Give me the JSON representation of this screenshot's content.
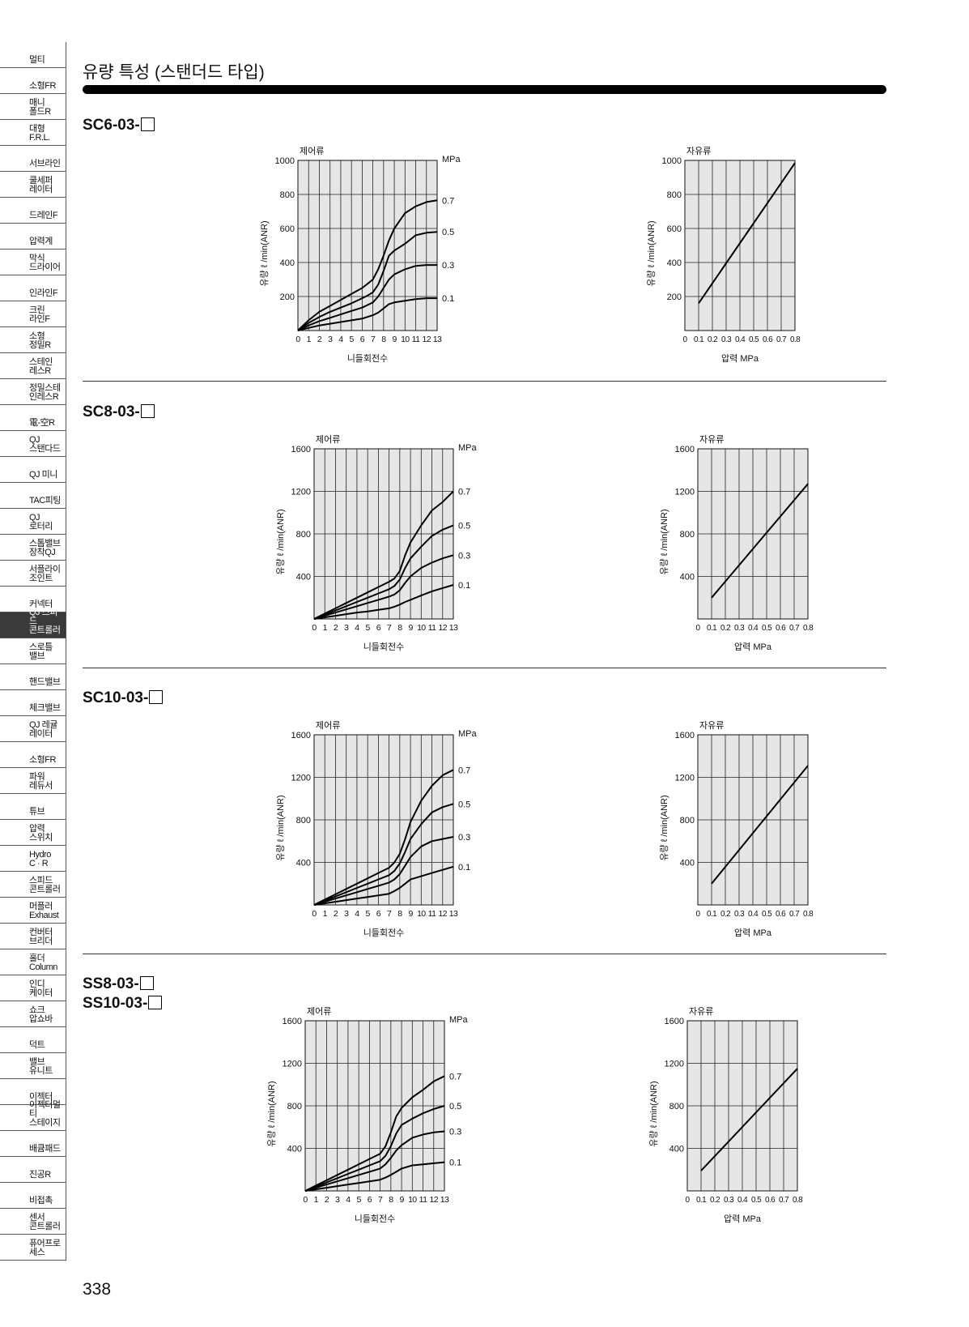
{
  "sidebar": {
    "items": [
      {
        "label": "멀티",
        "active": false
      },
      {
        "label": "소형FR",
        "active": false
      },
      {
        "label": "매니\n폴드R",
        "active": false
      },
      {
        "label": "대형\nF.R.L.",
        "active": false
      },
      {
        "label": "서브라인",
        "active": false
      },
      {
        "label": "쿨세퍼\n레이터",
        "active": false
      },
      {
        "label": "드레인F",
        "active": false
      },
      {
        "label": "압력계",
        "active": false
      },
      {
        "label": "막식\n드라이어",
        "active": false
      },
      {
        "label": "인라인F",
        "active": false
      },
      {
        "label": "크린\n라인F",
        "active": false
      },
      {
        "label": "소형\n정밀R",
        "active": false
      },
      {
        "label": "스테인\n레스R",
        "active": false
      },
      {
        "label": "정밀스테\n인레스R",
        "active": false
      },
      {
        "label": "電-空R",
        "active": false
      },
      {
        "label": "QJ\n스탠다드",
        "active": false
      },
      {
        "label": "QJ 미니",
        "active": false
      },
      {
        "label": "TAC피팅",
        "active": false
      },
      {
        "label": "QJ\n로터리",
        "active": false
      },
      {
        "label": "스톱밸브\n장착QJ",
        "active": false
      },
      {
        "label": "서플라이\n조인트",
        "active": false
      },
      {
        "label": "커넥터",
        "active": false
      },
      {
        "label": "QJ 스피드\n콘트롤러",
        "active": true
      },
      {
        "label": "스로틀\n밸브",
        "active": false
      },
      {
        "label": "핸드밸브",
        "active": false
      },
      {
        "label": "체크밸브",
        "active": false
      },
      {
        "label": "QJ 레귤\n레이터",
        "active": false
      },
      {
        "label": "소형FR",
        "active": false
      },
      {
        "label": "파워\n레듀서",
        "active": false
      },
      {
        "label": "튜브",
        "active": false
      },
      {
        "label": "압력\n스위치",
        "active": false
      },
      {
        "label": "Hydro\nC · R",
        "active": false
      },
      {
        "label": "스피드\n콘트롤러",
        "active": false
      },
      {
        "label": "머플러\nExhaust",
        "active": false
      },
      {
        "label": "컨버터\n브리더",
        "active": false
      },
      {
        "label": "홀더\nColumn",
        "active": false
      },
      {
        "label": "인디\n케이터",
        "active": false
      },
      {
        "label": "쇼크\n압쇼바",
        "active": false
      },
      {
        "label": "덕트",
        "active": false
      },
      {
        "label": "밸브\n유니트",
        "active": false
      },
      {
        "label": "이젝터",
        "active": false
      },
      {
        "label": "이젝터멀티\n스테이지",
        "active": false
      },
      {
        "label": "배큠패드",
        "active": false
      },
      {
        "label": "진공R",
        "active": false
      },
      {
        "label": "비접촉",
        "active": false
      },
      {
        "label": "센서\n콘트롤러",
        "active": false
      },
      {
        "label": "퓨어프로\n세스",
        "active": false
      }
    ]
  },
  "page": {
    "title": "유량 특성 (스탠더드 타입)",
    "page_number": "338"
  },
  "sections": [
    {
      "label_lines": [
        "SC6-03-"
      ]
    },
    {
      "label_lines": [
        "SC8-03-"
      ]
    },
    {
      "label_lines": [
        "SC10-03-"
      ]
    },
    {
      "label_lines": [
        "SS8-03-",
        "SS10-03-"
      ]
    }
  ],
  "chart_data": [
    {
      "id": "sc6-controlled",
      "type": "line",
      "title": "제어류",
      "xlabel": "니들회전수",
      "ylabel": "유량  ℓ /min(ANR)",
      "secondary_axis_label": "MPa",
      "x_ticks": [
        "0",
        "1",
        "2",
        "3",
        "4",
        "5",
        "6",
        "7",
        "8",
        "9",
        "10",
        "11",
        "12",
        "13"
      ],
      "y_ticks": [
        "200",
        "400",
        "600",
        "800",
        "1000"
      ],
      "ylim": [
        0,
        1000
      ],
      "xlim": [
        0,
        13
      ],
      "grid": true,
      "series": [
        {
          "name": "0.7",
          "x": [
            0,
            1,
            2,
            3,
            4,
            5,
            6,
            6.5,
            7,
            7.5,
            8,
            8.5,
            9,
            10,
            11,
            12,
            13
          ],
          "y": [
            0,
            60,
            110,
            145,
            180,
            215,
            250,
            275,
            300,
            360,
            440,
            530,
            600,
            690,
            730,
            755,
            765
          ]
        },
        {
          "name": "0.5",
          "x": [
            0,
            1,
            2,
            3,
            4,
            5,
            6,
            6.5,
            7,
            7.5,
            8,
            8.5,
            9,
            10,
            11,
            12,
            13
          ],
          "y": [
            0,
            45,
            80,
            110,
            135,
            160,
            190,
            205,
            225,
            270,
            350,
            440,
            470,
            510,
            560,
            575,
            580
          ]
        },
        {
          "name": "0.3",
          "x": [
            0,
            1,
            2,
            3,
            4,
            5,
            6,
            6.5,
            7,
            7.5,
            8,
            8.5,
            9,
            10,
            11,
            12,
            13
          ],
          "y": [
            0,
            30,
            55,
            75,
            95,
            115,
            135,
            150,
            165,
            200,
            250,
            300,
            330,
            360,
            380,
            385,
            385
          ]
        },
        {
          "name": "0.1",
          "x": [
            0,
            1,
            2,
            3,
            4,
            5,
            6,
            6.5,
            7,
            7.5,
            8,
            8.5,
            9,
            10,
            11,
            12,
            13
          ],
          "y": [
            0,
            15,
            30,
            40,
            50,
            60,
            70,
            80,
            90,
            105,
            130,
            155,
            165,
            175,
            185,
            190,
            190
          ]
        }
      ]
    },
    {
      "id": "sc6-free",
      "type": "line",
      "title": "자유류",
      "xlabel": "압력 MPa",
      "ylabel": "유량  ℓ /min(ANR)",
      "x_ticks": [
        "0",
        "0.1",
        "0.2",
        "0.3",
        "0.4",
        "0.5",
        "0.6",
        "0.7",
        "0.8"
      ],
      "y_ticks": [
        "200",
        "400",
        "600",
        "800",
        "1000"
      ],
      "ylim": [
        0,
        1000
      ],
      "xlim": [
        0,
        0.8
      ],
      "grid": true,
      "series": [
        {
          "x": [
            0.1,
            0.8
          ],
          "y": [
            160,
            985
          ]
        }
      ]
    },
    {
      "id": "sc8-controlled",
      "type": "line",
      "title": "제어류",
      "xlabel": "니들회전수",
      "ylabel": "유량  ℓ /min(ANR)",
      "secondary_axis_label": "MPa",
      "x_ticks": [
        "0",
        "1",
        "2",
        "3",
        "4",
        "5",
        "6",
        "7",
        "8",
        "9",
        "10",
        "11",
        "12",
        "13"
      ],
      "y_ticks": [
        "400",
        "800",
        "1200",
        "1600"
      ],
      "ylim": [
        0,
        1600
      ],
      "xlim": [
        0,
        13
      ],
      "grid": true,
      "series": [
        {
          "name": "0.7",
          "x": [
            0,
            1,
            2,
            3,
            4,
            5,
            6,
            7,
            7.5,
            8,
            8.5,
            9,
            10,
            11,
            12,
            13
          ],
          "y": [
            0,
            50,
            100,
            150,
            200,
            250,
            300,
            350,
            380,
            450,
            600,
            720,
            880,
            1020,
            1100,
            1200
          ]
        },
        {
          "name": "0.5",
          "x": [
            0,
            1,
            2,
            3,
            4,
            5,
            6,
            7,
            7.5,
            8,
            8.5,
            9,
            10,
            11,
            12,
            13
          ],
          "y": [
            0,
            40,
            80,
            120,
            160,
            200,
            240,
            280,
            310,
            370,
            480,
            570,
            680,
            780,
            840,
            880
          ]
        },
        {
          "name": "0.3",
          "x": [
            0,
            1,
            2,
            3,
            4,
            5,
            6,
            7,
            7.5,
            8,
            8.5,
            9,
            10,
            11,
            12,
            13
          ],
          "y": [
            0,
            30,
            60,
            90,
            120,
            150,
            180,
            210,
            230,
            270,
            340,
            400,
            480,
            530,
            570,
            600
          ]
        },
        {
          "name": "0.1",
          "x": [
            0,
            1,
            2,
            3,
            4,
            5,
            6,
            7,
            7.5,
            8,
            8.5,
            9,
            10,
            11,
            12,
            13
          ],
          "y": [
            0,
            15,
            30,
            45,
            60,
            70,
            85,
            100,
            115,
            135,
            160,
            180,
            220,
            260,
            290,
            320
          ]
        }
      ]
    },
    {
      "id": "sc8-free",
      "type": "line",
      "title": "자유류",
      "xlabel": "압력 MPa",
      "ylabel": "유량  ℓ /min(ANR)",
      "x_ticks": [
        "0",
        "0.1",
        "0.2",
        "0.3",
        "0.4",
        "0.5",
        "0.6",
        "0.7",
        "0.8"
      ],
      "y_ticks": [
        "400",
        "800",
        "1200",
        "1600"
      ],
      "ylim": [
        0,
        1600
      ],
      "xlim": [
        0,
        0.8
      ],
      "grid": true,
      "series": [
        {
          "x": [
            0.1,
            0.8
          ],
          "y": [
            200,
            1270
          ]
        }
      ]
    },
    {
      "id": "sc10-controlled",
      "type": "line",
      "title": "제어류",
      "xlabel": "니들회전수",
      "ylabel": "유량  ℓ /min(ANR)",
      "secondary_axis_label": "MPa",
      "x_ticks": [
        "0",
        "1",
        "2",
        "3",
        "4",
        "5",
        "6",
        "7",
        "8",
        "9",
        "10",
        "11",
        "12",
        "13"
      ],
      "y_ticks": [
        "400",
        "800",
        "1200",
        "1600"
      ],
      "ylim": [
        0,
        1600
      ],
      "xlim": [
        0,
        13
      ],
      "grid": true,
      "series": [
        {
          "name": "0.7",
          "x": [
            0,
            1,
            2,
            3,
            4,
            5,
            6,
            7,
            7.5,
            8,
            8.5,
            9,
            10,
            11,
            12,
            13
          ],
          "y": [
            0,
            50,
            100,
            150,
            200,
            250,
            300,
            350,
            400,
            480,
            620,
            780,
            980,
            1120,
            1220,
            1270
          ]
        },
        {
          "name": "0.5",
          "x": [
            0,
            1,
            2,
            3,
            4,
            5,
            6,
            7,
            7.5,
            8,
            8.5,
            9,
            10,
            11,
            12,
            13
          ],
          "y": [
            0,
            40,
            80,
            120,
            160,
            200,
            240,
            280,
            320,
            390,
            500,
            620,
            760,
            870,
            920,
            950
          ]
        },
        {
          "name": "0.3",
          "x": [
            0,
            1,
            2,
            3,
            4,
            5,
            6,
            7,
            7.5,
            8,
            8.5,
            9,
            10,
            11,
            12,
            13
          ],
          "y": [
            0,
            30,
            60,
            90,
            120,
            150,
            180,
            210,
            240,
            290,
            370,
            450,
            550,
            600,
            620,
            640
          ]
        },
        {
          "name": "0.1",
          "x": [
            0,
            1,
            2,
            3,
            4,
            5,
            6,
            7,
            7.5,
            8,
            8.5,
            9,
            10,
            11,
            12,
            13
          ],
          "y": [
            0,
            15,
            30,
            45,
            60,
            75,
            90,
            105,
            130,
            160,
            200,
            240,
            270,
            300,
            330,
            360
          ]
        }
      ]
    },
    {
      "id": "sc10-free",
      "type": "line",
      "title": "자유류",
      "xlabel": "압력 MPa",
      "ylabel": "유량  ℓ /min(ANR)",
      "x_ticks": [
        "0",
        "0.1",
        "0.2",
        "0.3",
        "0.4",
        "0.5",
        "0.6",
        "0.7",
        "0.8"
      ],
      "y_ticks": [
        "400",
        "800",
        "1200",
        "1600"
      ],
      "ylim": [
        0,
        1600
      ],
      "xlim": [
        0,
        0.8
      ],
      "grid": true,
      "series": [
        {
          "x": [
            0.1,
            0.8
          ],
          "y": [
            200,
            1310
          ]
        }
      ]
    },
    {
      "id": "ss-controlled",
      "type": "line",
      "title": "제어류",
      "xlabel": "니들회전수",
      "ylabel": "유량  ℓ /min(ANR)",
      "secondary_axis_label": "MPa",
      "x_ticks": [
        "0",
        "1",
        "2",
        "3",
        "4",
        "5",
        "6",
        "7",
        "8",
        "9",
        "10",
        "11",
        "12",
        "13"
      ],
      "y_ticks": [
        "400",
        "800",
        "1200",
        "1600"
      ],
      "ylim": [
        0,
        1600
      ],
      "xlim": [
        0,
        13
      ],
      "grid": true,
      "series": [
        {
          "name": "0.7",
          "x": [
            0,
            1,
            2,
            3,
            4,
            5,
            6,
            7,
            7.5,
            8,
            8.5,
            9,
            10,
            11,
            12,
            13
          ],
          "y": [
            0,
            50,
            100,
            150,
            200,
            250,
            300,
            350,
            420,
            550,
            700,
            780,
            880,
            950,
            1030,
            1080
          ]
        },
        {
          "name": "0.5",
          "x": [
            0,
            1,
            2,
            3,
            4,
            5,
            6,
            7,
            7.5,
            8,
            8.5,
            9,
            10,
            11,
            12,
            13
          ],
          "y": [
            0,
            40,
            80,
            120,
            160,
            200,
            240,
            280,
            330,
            420,
            540,
            620,
            680,
            730,
            770,
            800
          ]
        },
        {
          "name": "0.3",
          "x": [
            0,
            1,
            2,
            3,
            4,
            5,
            6,
            7,
            7.5,
            8,
            8.5,
            9,
            10,
            11,
            12,
            13
          ],
          "y": [
            0,
            30,
            60,
            90,
            120,
            150,
            180,
            210,
            250,
            310,
            380,
            430,
            500,
            530,
            550,
            560
          ]
        },
        {
          "name": "0.1",
          "x": [
            0,
            1,
            2,
            3,
            4,
            5,
            6,
            7,
            7.5,
            8,
            8.5,
            9,
            10,
            11,
            12,
            13
          ],
          "y": [
            0,
            15,
            30,
            45,
            60,
            75,
            90,
            105,
            125,
            150,
            180,
            210,
            240,
            250,
            260,
            270
          ]
        }
      ]
    },
    {
      "id": "ss-free",
      "type": "line",
      "title": "자유류",
      "xlabel": "압력 MPa",
      "ylabel": "유량  ℓ /min(ANR)",
      "x_ticks": [
        "0",
        "0.1",
        "0.2",
        "0.3",
        "0.4",
        "0.5",
        "0.6",
        "0.7",
        "0.8"
      ],
      "y_ticks": [
        "400",
        "800",
        "1200",
        "1600"
      ],
      "ylim": [
        0,
        1600
      ],
      "xlim": [
        0,
        0.8
      ],
      "grid": true,
      "series": [
        {
          "x": [
            0.1,
            0.8
          ],
          "y": [
            190,
            1150
          ]
        }
      ]
    }
  ]
}
